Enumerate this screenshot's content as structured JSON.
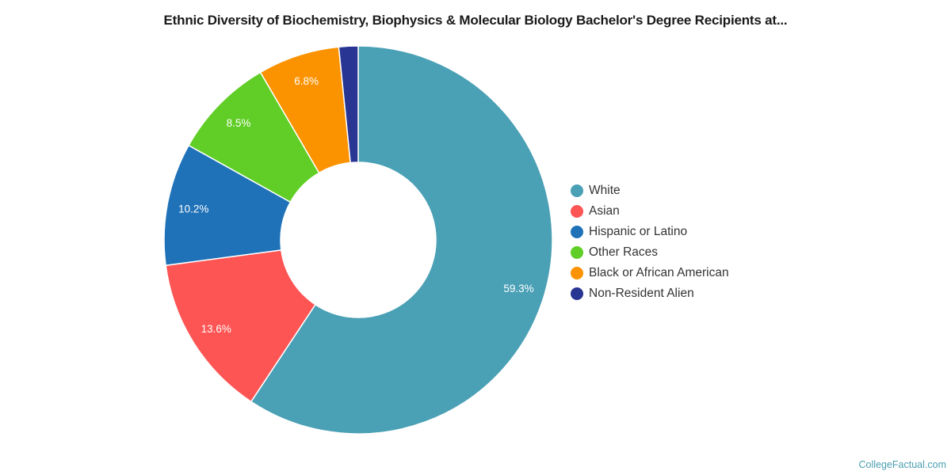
{
  "title": "Ethnic Diversity of Biochemistry, Biophysics & Molecular Biology Bachelor's Degree Recipients at...",
  "credit": "CollegeFactual.com",
  "chart_data": {
    "type": "pie",
    "subtype": "donut",
    "title": "Ethnic Diversity of Biochemistry, Biophysics & Molecular Biology Bachelor's Degree Recipients at...",
    "categories": [
      "White",
      "Asian",
      "Hispanic or Latino",
      "Other Races",
      "Black or African American",
      "Non-Resident Alien"
    ],
    "values": [
      59.3,
      13.6,
      10.2,
      8.5,
      6.8,
      1.6
    ],
    "labels": [
      "59.3%",
      "13.6%",
      "10.2%",
      "8.5%",
      "6.8%",
      ""
    ],
    "colors": [
      "#4aa0b5",
      "#fd5454",
      "#1f72b8",
      "#60ce26",
      "#fb9300",
      "#283593"
    ],
    "legend_position": "right",
    "start_angle": "top",
    "direction": "clockwise"
  },
  "legend": {
    "items": [
      {
        "label": "White",
        "color": "#4aa0b5"
      },
      {
        "label": "Asian",
        "color": "#fd5454"
      },
      {
        "label": "Hispanic or Latino",
        "color": "#1f72b8"
      },
      {
        "label": "Other Races",
        "color": "#60ce26"
      },
      {
        "label": "Black or African American",
        "color": "#fb9300"
      },
      {
        "label": "Non-Resident Alien",
        "color": "#283593"
      }
    ]
  }
}
